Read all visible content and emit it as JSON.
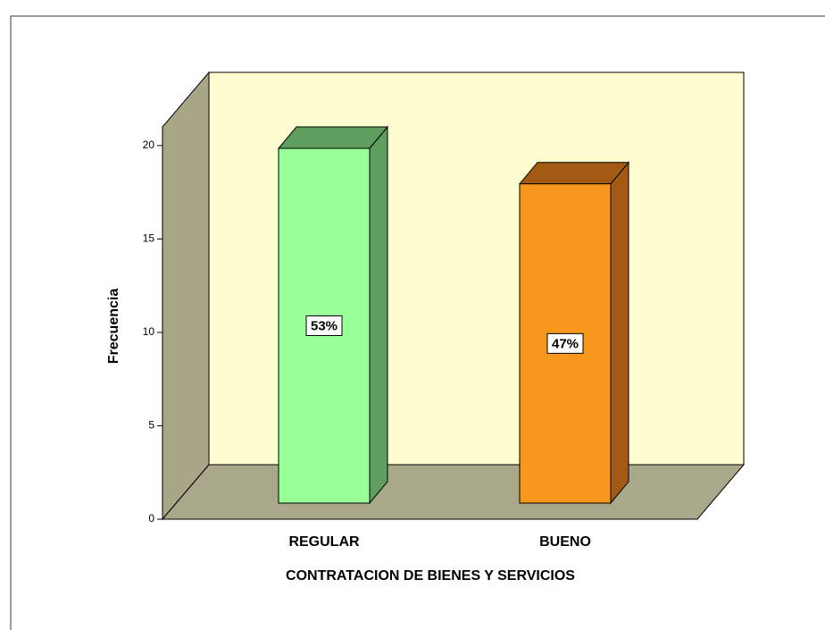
{
  "chart_data": {
    "type": "bar3d",
    "categories": [
      "REGULAR",
      "BUENO"
    ],
    "values": [
      20,
      18
    ],
    "data_labels": [
      "53%",
      "47%"
    ],
    "colors": [
      "#99ff99",
      "#f7981d"
    ],
    "side_colors": [
      "#5f9e5f",
      "#a35b14"
    ],
    "xlabel": "CONTRATACION DE BIENES Y SERVICIOS",
    "ylabel": "Frecuencia",
    "ylim": [
      0,
      21
    ],
    "yticks": [
      0,
      5,
      10,
      15,
      20
    ]
  }
}
